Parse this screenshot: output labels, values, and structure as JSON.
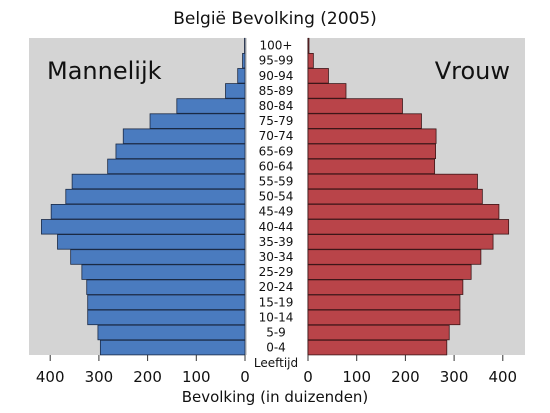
{
  "chart_data": {
    "type": "bar",
    "title": "België Bevolking (2005)",
    "xlabel": "Bevolking (in duizenden)",
    "ylabel": "Leeftijd",
    "categories": [
      "100+",
      "95-99",
      "90-94",
      "85-89",
      "80-84",
      "75-79",
      "70-74",
      "65-69",
      "60-64",
      "55-59",
      "50-54",
      "45-49",
      "40-44",
      "35-39",
      "30-34",
      "25-29",
      "20-24",
      "15-19",
      "10-14",
      "5-9",
      "0-4"
    ],
    "series": [
      {
        "name": "Mannelijk",
        "color": "#4a7bbf",
        "values": [
          1,
          5,
          15,
          40,
          140,
          195,
          250,
          265,
          282,
          355,
          368,
          398,
          418,
          385,
          358,
          335,
          325,
          323,
          323,
          302,
          297
        ]
      },
      {
        "name": "Vrouw",
        "color": "#b94449",
        "values": [
          2,
          11,
          42,
          78,
          194,
          233,
          263,
          262,
          260,
          348,
          358,
          392,
          412,
          380,
          355,
          335,
          318,
          312,
          312,
          290,
          285
        ]
      }
    ],
    "xlim": [
      0,
      450
    ],
    "xticks_left": [
      "400",
      "300",
      "200",
      "100",
      "0"
    ],
    "xticks_right": [
      "0",
      "100",
      "200",
      "300",
      "400"
    ],
    "grid": false,
    "legend": "none"
  },
  "colors": {
    "panel_bg": "#d4d4d4",
    "male": "#4a7bbf",
    "female": "#b94449"
  }
}
